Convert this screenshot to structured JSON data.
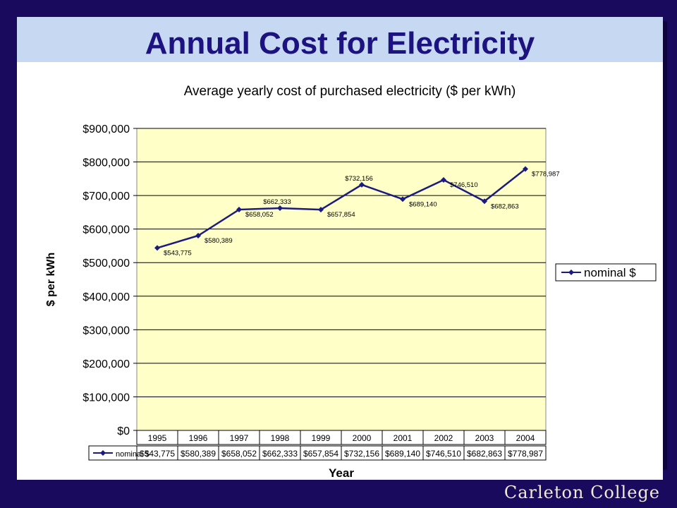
{
  "slide": {
    "title": "Annual Cost for Electricity",
    "footer_brand": "Carleton College"
  },
  "colors": {
    "background": "#1a0a5e",
    "title_band": "#c6d8f2",
    "title_text": "#1c1280",
    "plot_area": "#ffffc8",
    "series_line": "#1a1a80"
  },
  "chart_data": {
    "type": "line",
    "title": "Average yearly cost of purchased electricity ($ per kWh)",
    "xlabel": "Year",
    "ylabel": "$ per kWh",
    "categories": [
      "1995",
      "1996",
      "1997",
      "1998",
      "1999",
      "2000",
      "2001",
      "2002",
      "2003",
      "2004"
    ],
    "series": [
      {
        "name": "nominal $",
        "values": [
          543775,
          580389,
          658052,
          662333,
          657854,
          732156,
          689140,
          746510,
          682863,
          778987
        ],
        "labels": [
          "$543,775",
          "$580,389",
          "$658,052",
          "$662,333",
          "$657,854",
          "$732,156",
          "$689,140",
          "$746,510",
          "$682,863",
          "$778,987"
        ]
      }
    ],
    "ylim": [
      0,
      900000
    ],
    "yticks": [
      0,
      100000,
      200000,
      300000,
      400000,
      500000,
      600000,
      700000,
      800000,
      900000
    ],
    "ytick_labels": [
      "$0",
      "$100,000",
      "$200,000",
      "$300,000",
      "$400,000",
      "$500,000",
      "$600,000",
      "$700,000",
      "$800,000",
      "$900,000"
    ],
    "grid": true,
    "legend": "right",
    "data_table": true
  }
}
